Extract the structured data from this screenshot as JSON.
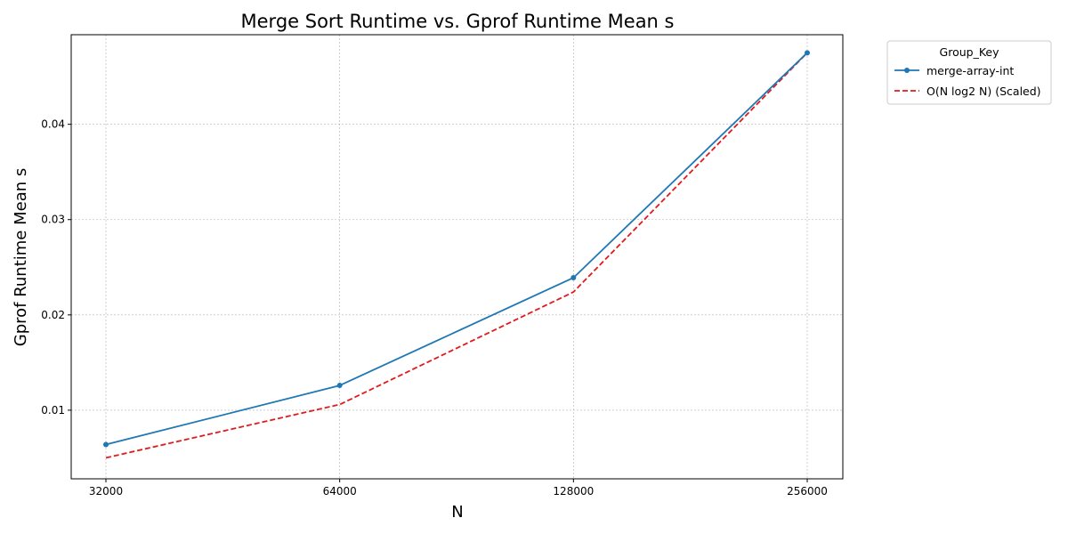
{
  "chart_data": {
    "type": "line",
    "title": "Merge Sort Runtime vs. Gprof Runtime Mean s",
    "xlabel": "N",
    "ylabel": "Gprof Runtime Mean s",
    "x_scale": "log2",
    "x": [
      32000,
      64000,
      128000,
      256000
    ],
    "x_tick_labels": [
      "32000",
      "64000",
      "128000",
      "256000"
    ],
    "y_ticks": [
      0.01,
      0.02,
      0.03,
      0.04
    ],
    "y_tick_labels": [
      "0.01",
      "0.02",
      "0.03",
      "0.04"
    ],
    "ylim": [
      0.0028,
      0.0494
    ],
    "grid": true,
    "legend": {
      "title": "Group_Key",
      "placement": "outside-top-right"
    },
    "series": [
      {
        "name": "merge-array-int",
        "values": [
          0.0064,
          0.0126,
          0.0239,
          0.0475
        ],
        "color": "#1f77b4",
        "style": "solid",
        "marker": "circle"
      },
      {
        "name": "O(N log2 N) (Scaled)",
        "values": [
          0.005,
          0.0106,
          0.0224,
          0.0475
        ],
        "color": "#e31a1c",
        "style": "dashed",
        "marker": "none"
      }
    ]
  }
}
